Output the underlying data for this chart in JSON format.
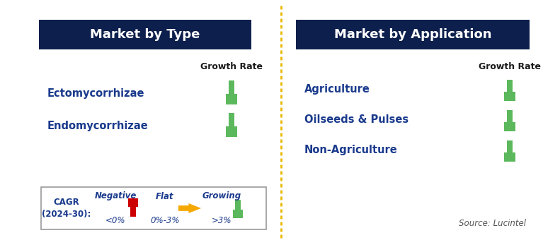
{
  "left_panel_title": "Market by Type",
  "right_panel_title": "Market by Application",
  "left_items": [
    "Ectomycorrhizae",
    "Endomycorrhizae"
  ],
  "right_items": [
    "Agriculture",
    "Oilseeds & Pulses",
    "Non-Agriculture"
  ],
  "header_bg": "#0d1f4c",
  "header_text_color": "#ffffff",
  "item_text_color": "#1a3a8c",
  "growth_rate_label": "Growth Rate",
  "growth_rate_color": "#1a1a1a",
  "divider_color": "#e8b800",
  "legend_label_line1": "CAGR",
  "legend_label_line2": "(2024-30):",
  "legend_items": [
    {
      "label": "Negative",
      "sublabel": "<0%",
      "arrow": "red_down"
    },
    {
      "label": "Flat",
      "sublabel": "0%-3%",
      "arrow": "orange_right"
    },
    {
      "label": "Growing",
      "sublabel": ">3%",
      "arrow": "green_up"
    }
  ],
  "source_text": "Source: Lucintel",
  "bg_color": "#ffffff",
  "arrow_green": "#5cb85c",
  "arrow_red": "#cc0000",
  "arrow_orange": "#f5a800",
  "fig_width": 7.91,
  "fig_height": 3.4,
  "dpi": 100
}
